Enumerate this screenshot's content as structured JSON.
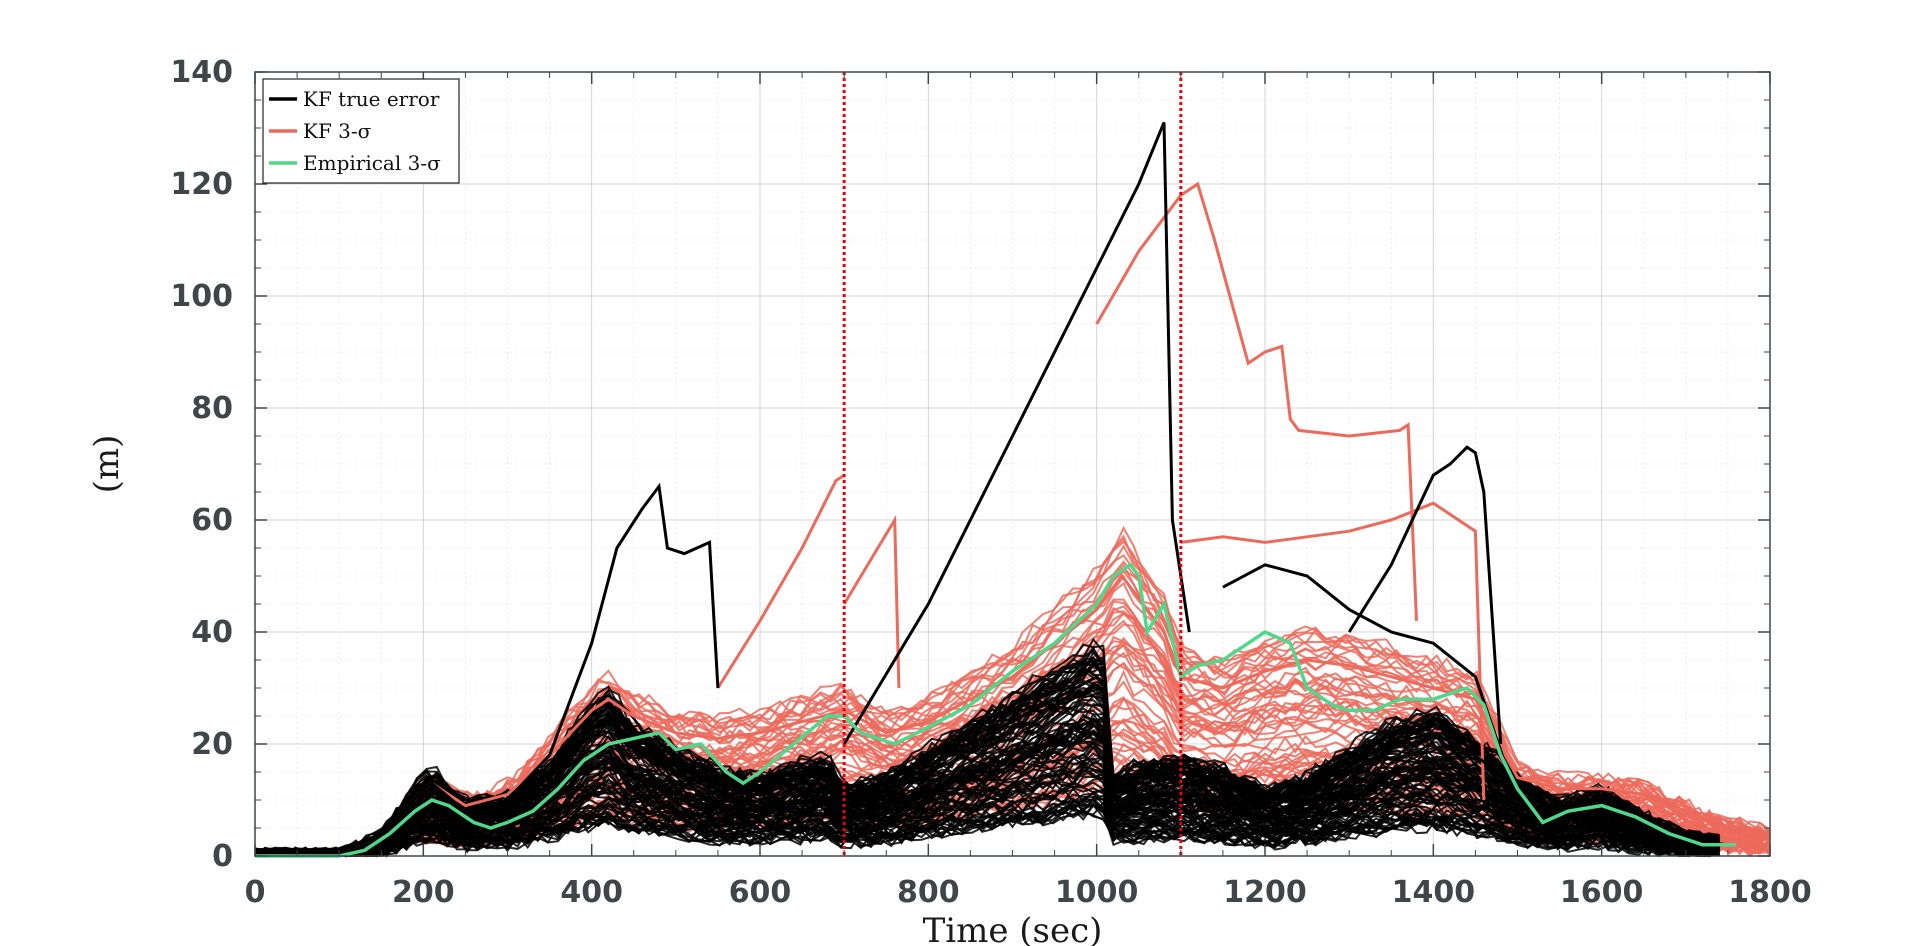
{
  "chart_data": {
    "type": "line",
    "xlabel": "Time (sec)",
    "ylabel": "(m)",
    "xlim": [
      0,
      1800
    ],
    "ylim": [
      0,
      140
    ],
    "xticks": [
      "0",
      "200",
      "400",
      "600",
      "800",
      "1000",
      "1200",
      "1400",
      "1600",
      "1800"
    ],
    "yticks": [
      "0",
      "20",
      "40",
      "60",
      "80",
      "100",
      "120",
      "140"
    ],
    "grid": true,
    "minor_grid": true,
    "legend_position": "top-left",
    "vertical_markers": [
      {
        "x": 700,
        "color": "#e8000b",
        "style": "dotted"
      },
      {
        "x": 1100,
        "color": "#e8000b",
        "style": "dotted"
      }
    ],
    "series": [
      {
        "name": "KF true error",
        "legend_label": "KF true error",
        "color": "#000000",
        "representative_curves": [
          {
            "x": [
              0,
              100,
              150,
              200,
              210,
              250,
              300,
              350,
              400,
              420,
              450,
              500,
              550,
              600,
              650,
              680,
              700,
              750,
              800,
              850,
              900,
              950,
              1000,
              1010,
              1020,
              1050,
              1100,
              1150,
              1200,
              1250,
              1300,
              1350,
              1400,
              1450,
              1500,
              1550,
              1600,
              1650,
              1700,
              1750
            ],
            "y": [
              0,
              0,
              3,
              12,
              13,
              8,
              9,
              14,
              23,
              25,
              20,
              16,
              13,
              12,
              14,
              15,
              10,
              12,
              16,
              20,
              24,
              28,
              32,
              30,
              12,
              14,
              15,
              13,
              10,
              12,
              16,
              20,
              22,
              18,
              12,
              8,
              10,
              6,
              3,
              2
            ]
          },
          {
            "x": [
              300,
              350,
              400,
              430,
              460,
              480,
              490,
              510,
              540,
              550
            ],
            "y": [
              10,
              18,
              38,
              55,
              62,
              66,
              55,
              54,
              56,
              30
            ]
          },
          {
            "x": [
              700,
              800,
              900,
              1000,
              1050,
              1080,
              1090,
              1110
            ],
            "y": [
              20,
              45,
              75,
              105,
              120,
              131,
              60,
              40
            ]
          },
          {
            "x": [
              1300,
              1350,
              1400,
              1420,
              1440,
              1450,
              1460,
              1480
            ],
            "y": [
              40,
              52,
              68,
              70,
              73,
              72,
              65,
              20
            ]
          },
          {
            "x": [
              1150,
              1200,
              1250,
              1300,
              1350,
              1400,
              1450,
              1500
            ],
            "y": [
              48,
              52,
              50,
              44,
              40,
              38,
              32,
              10
            ]
          }
        ]
      },
      {
        "name": "KF 3-σ",
        "legend_label": "KF 3-σ",
        "color": "#ec6a5c",
        "representative_curves": [
          {
            "x": [
              0,
              100,
              150,
              200,
              210,
              250,
              300,
              350,
              400,
              420,
              450,
              500,
              550,
              600,
              650,
              700,
              750,
              800,
              850,
              900,
              950,
              1000,
              1030,
              1050,
              1080,
              1100,
              1150,
              1200,
              1250,
              1300,
              1350,
              1400,
              1450,
              1500,
              1550,
              1600,
              1650,
              1700,
              1750,
              1800
            ],
            "y": [
              0,
              0,
              3,
              12,
              13,
              9,
              11,
              18,
              26,
              28,
              25,
              22,
              21,
              22,
              24,
              26,
              22,
              24,
              28,
              32,
              38,
              44,
              50,
              46,
              40,
              32,
              30,
              33,
              35,
              34,
              32,
              30,
              28,
              14,
              12,
              12,
              11,
              8,
              5,
              4
            ]
          },
          {
            "x": [
              550,
              600,
              650,
              690,
              700
            ],
            "y": [
              30,
              42,
              55,
              67,
              68
            ]
          },
          {
            "x": [
              700,
              740,
              760,
              765
            ],
            "y": [
              45,
              55,
              60,
              30
            ]
          },
          {
            "x": [
              1000,
              1050,
              1100,
              1120,
              1140,
              1180,
              1200,
              1220,
              1230,
              1240,
              1300,
              1360,
              1370,
              1380
            ],
            "y": [
              95,
              108,
              118,
              120,
              110,
              88,
              90,
              91,
              78,
              76,
              75,
              76,
              77,
              42
            ]
          },
          {
            "x": [
              1100,
              1150,
              1200,
              1250,
              1300,
              1350,
              1400,
              1450,
              1460
            ],
            "y": [
              56,
              57,
              56,
              57,
              58,
              60,
              63,
              58,
              10
            ]
          }
        ]
      },
      {
        "name": "Empirical 3-σ",
        "legend_label": "Empirical 3-σ",
        "color": "#4fd88b",
        "x": [
          0,
          100,
          130,
          160,
          190,
          210,
          230,
          260,
          280,
          300,
          330,
          360,
          390,
          420,
          450,
          480,
          500,
          530,
          560,
          580,
          600,
          640,
          680,
          700,
          720,
          760,
          800,
          850,
          900,
          950,
          1000,
          1020,
          1040,
          1050,
          1060,
          1080,
          1100,
          1120,
          1150,
          1180,
          1200,
          1230,
          1250,
          1280,
          1300,
          1330,
          1360,
          1400,
          1440,
          1460,
          1480,
          1500,
          1530,
          1560,
          1600,
          1640,
          1680,
          1720,
          1760
        ],
        "y": [
          0,
          0,
          1,
          4,
          8,
          10,
          9,
          6,
          5,
          6,
          8,
          12,
          17,
          20,
          21,
          22,
          19,
          20,
          15,
          13,
          15,
          20,
          25,
          25,
          22,
          20,
          23,
          27,
          33,
          38,
          45,
          50,
          52,
          50,
          40,
          45,
          32,
          34,
          35,
          38,
          40,
          38,
          30,
          27,
          26,
          26,
          28,
          28,
          30,
          27,
          18,
          12,
          6,
          8,
          9,
          7,
          4,
          2,
          2
        ]
      }
    ]
  }
}
